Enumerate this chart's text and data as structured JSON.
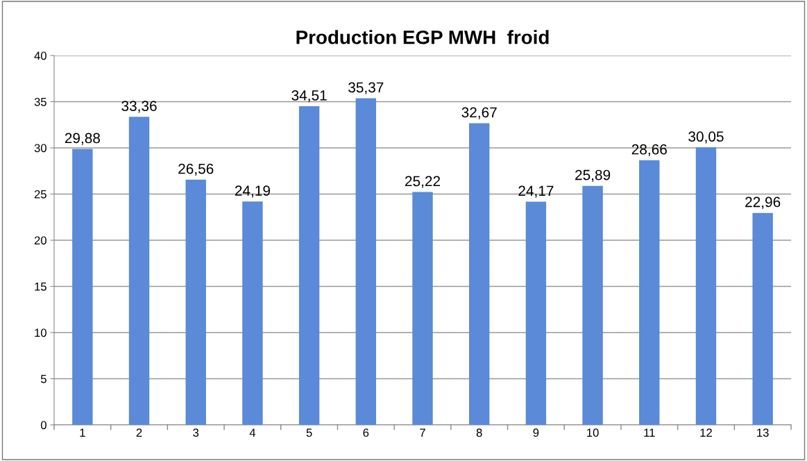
{
  "chart_data": {
    "type": "bar",
    "title": "Production EGP MWH  froid",
    "categories": [
      "1",
      "2",
      "3",
      "4",
      "5",
      "6",
      "7",
      "8",
      "9",
      "10",
      "11",
      "12",
      "13"
    ],
    "values": [
      29.88,
      33.36,
      26.56,
      24.19,
      34.51,
      35.37,
      25.22,
      32.67,
      24.17,
      25.89,
      28.66,
      30.05,
      22.96
    ],
    "value_labels": [
      "29,88",
      "33,36",
      "26,56",
      "24,19",
      "34,51",
      "35,37",
      "25,22",
      "32,67",
      "24,17",
      "25,89",
      "28,66",
      "30,05",
      "22,96"
    ],
    "color": "#5a8ad8",
    "ylim": [
      0,
      40
    ],
    "yticks": [
      0,
      5,
      10,
      15,
      20,
      25,
      30,
      35,
      40
    ],
    "grid": "y",
    "legend": false
  }
}
